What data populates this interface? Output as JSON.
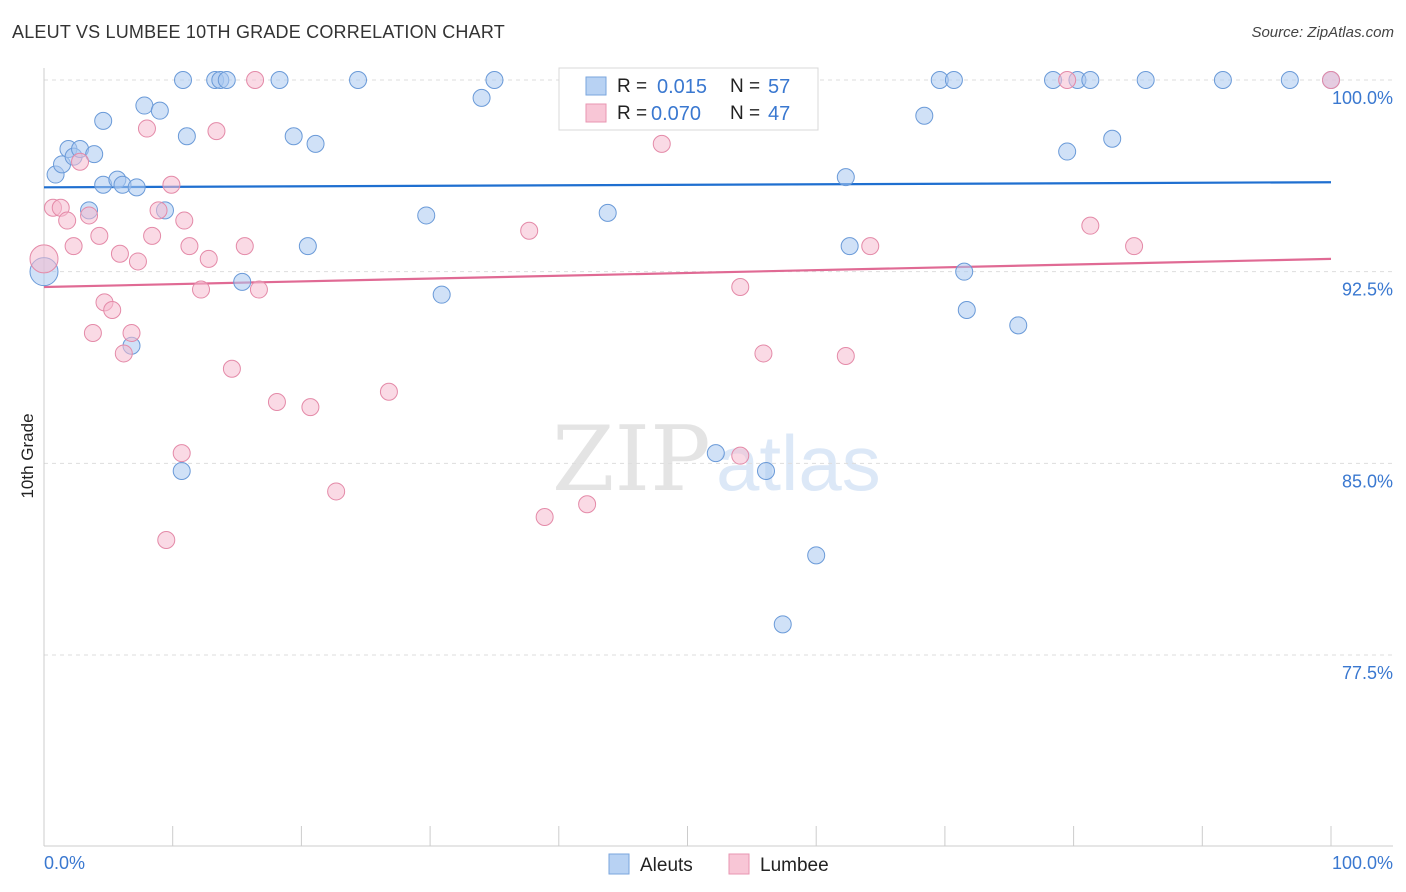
{
  "title": "ALEUT VS LUMBEE 10TH GRADE CORRELATION CHART",
  "source": "Source: ZipAtlas.com",
  "watermark": {
    "zip": "ZIP",
    "atlas": "atlas"
  },
  "legend": {
    "aleut": {
      "r_label": "R =",
      "r_value": "0.015",
      "n_label": "N =",
      "n_value": "57"
    },
    "lumbee": {
      "r_label": "R =",
      "r_value": "0.070",
      "n_label": "N =",
      "n_value": "47"
    }
  },
  "colors": {
    "aleut_fill": "#aac8f0",
    "aleut_stroke": "#6a9ad8",
    "aleut_line": "#1f6fd0",
    "lumbee_fill": "#f6bcd0",
    "lumbee_stroke": "#e48aa8",
    "lumbee_line": "#e06a94",
    "value_text": "#3a78d0",
    "grid": "#dddddd"
  },
  "chart_data": {
    "type": "scatter",
    "title": "ALEUT VS LUMBEE 10TH GRADE CORRELATION CHART",
    "xlabel": "",
    "ylabel": "10th Grade",
    "xlim": [
      0,
      100
    ],
    "ylim": [
      70.5,
      101.0
    ],
    "x_tick_labels": {
      "left": "0.0%",
      "right": "100.0%"
    },
    "y_ticks": [
      {
        "value": 100.0,
        "label": "100.0%"
      },
      {
        "value": 92.5,
        "label": "92.5%"
      },
      {
        "value": 85.0,
        "label": "85.0%"
      },
      {
        "value": 77.5,
        "label": "77.5%"
      }
    ],
    "series": [
      {
        "name": "Aleuts",
        "trend": {
          "x": [
            0,
            100
          ],
          "y": [
            95.8,
            96.0
          ]
        },
        "points": [
          {
            "x": 0.0,
            "y": 92.5
          },
          {
            "x": 0.9,
            "y": 96.3
          },
          {
            "x": 1.4,
            "y": 96.7
          },
          {
            "x": 1.9,
            "y": 97.3
          },
          {
            "x": 2.3,
            "y": 97.0
          },
          {
            "x": 2.8,
            "y": 97.3
          },
          {
            "x": 3.5,
            "y": 94.9
          },
          {
            "x": 3.9,
            "y": 97.1
          },
          {
            "x": 4.6,
            "y": 98.4
          },
          {
            "x": 4.6,
            "y": 95.9
          },
          {
            "x": 5.7,
            "y": 96.1
          },
          {
            "x": 6.1,
            "y": 95.9
          },
          {
            "x": 7.2,
            "y": 95.8
          },
          {
            "x": 6.8,
            "y": 89.6
          },
          {
            "x": 7.8,
            "y": 99.0
          },
          {
            "x": 9.0,
            "y": 98.8
          },
          {
            "x": 9.4,
            "y": 94.9
          },
          {
            "x": 10.7,
            "y": 84.7
          },
          {
            "x": 10.8,
            "y": 100.0
          },
          {
            "x": 11.1,
            "y": 97.8
          },
          {
            "x": 13.3,
            "y": 100.0
          },
          {
            "x": 13.7,
            "y": 100.0
          },
          {
            "x": 14.2,
            "y": 100.0
          },
          {
            "x": 15.4,
            "y": 92.1
          },
          {
            "x": 18.3,
            "y": 100.0
          },
          {
            "x": 19.4,
            "y": 97.8
          },
          {
            "x": 20.5,
            "y": 93.5
          },
          {
            "x": 21.1,
            "y": 97.5
          },
          {
            "x": 24.4,
            "y": 100.0
          },
          {
            "x": 29.7,
            "y": 94.7
          },
          {
            "x": 30.9,
            "y": 91.6
          },
          {
            "x": 34.0,
            "y": 99.3
          },
          {
            "x": 35.0,
            "y": 100.0
          },
          {
            "x": 43.8,
            "y": 94.8
          },
          {
            "x": 47.1,
            "y": 100.0
          },
          {
            "x": 52.2,
            "y": 85.4
          },
          {
            "x": 55.4,
            "y": 100.0
          },
          {
            "x": 56.1,
            "y": 84.7
          },
          {
            "x": 57.4,
            "y": 78.7
          },
          {
            "x": 60.0,
            "y": 81.4
          },
          {
            "x": 62.3,
            "y": 96.2
          },
          {
            "x": 62.6,
            "y": 93.5
          },
          {
            "x": 68.4,
            "y": 98.6
          },
          {
            "x": 69.6,
            "y": 100.0
          },
          {
            "x": 70.7,
            "y": 100.0
          },
          {
            "x": 71.5,
            "y": 92.5
          },
          {
            "x": 71.7,
            "y": 91.0
          },
          {
            "x": 75.7,
            "y": 90.4
          },
          {
            "x": 78.4,
            "y": 100.0
          },
          {
            "x": 79.5,
            "y": 97.2
          },
          {
            "x": 80.3,
            "y": 100.0
          },
          {
            "x": 81.3,
            "y": 100.0
          },
          {
            "x": 83.0,
            "y": 97.7
          },
          {
            "x": 85.6,
            "y": 100.0
          },
          {
            "x": 91.6,
            "y": 100.0
          },
          {
            "x": 96.8,
            "y": 100.0
          },
          {
            "x": 100.0,
            "y": 100.0
          }
        ]
      },
      {
        "name": "Lumbee",
        "trend": {
          "x": [
            0,
            100
          ],
          "y": [
            91.9,
            93.0
          ]
        },
        "points": [
          {
            "x": 0.0,
            "y": 93.0
          },
          {
            "x": 0.7,
            "y": 95.0
          },
          {
            "x": 1.3,
            "y": 95.0
          },
          {
            "x": 1.8,
            "y": 94.5
          },
          {
            "x": 2.3,
            "y": 93.5
          },
          {
            "x": 2.8,
            "y": 96.8
          },
          {
            "x": 3.5,
            "y": 94.7
          },
          {
            "x": 3.8,
            "y": 90.1
          },
          {
            "x": 4.3,
            "y": 93.9
          },
          {
            "x": 4.7,
            "y": 91.3
          },
          {
            "x": 5.3,
            "y": 91.0
          },
          {
            "x": 5.9,
            "y": 93.2
          },
          {
            "x": 6.2,
            "y": 89.3
          },
          {
            "x": 6.8,
            "y": 90.1
          },
          {
            "x": 7.3,
            "y": 92.9
          },
          {
            "x": 8.0,
            "y": 98.1
          },
          {
            "x": 8.4,
            "y": 93.9
          },
          {
            "x": 8.9,
            "y": 94.9
          },
          {
            "x": 9.5,
            "y": 82.0
          },
          {
            "x": 9.9,
            "y": 95.9
          },
          {
            "x": 10.7,
            "y": 85.4
          },
          {
            "x": 10.9,
            "y": 94.5
          },
          {
            "x": 11.3,
            "y": 93.5
          },
          {
            "x": 12.2,
            "y": 91.8
          },
          {
            "x": 12.8,
            "y": 93.0
          },
          {
            "x": 13.4,
            "y": 98.0
          },
          {
            "x": 14.6,
            "y": 88.7
          },
          {
            "x": 15.6,
            "y": 93.5
          },
          {
            "x": 16.4,
            "y": 100.0
          },
          {
            "x": 16.7,
            "y": 91.8
          },
          {
            "x": 18.1,
            "y": 87.4
          },
          {
            "x": 20.7,
            "y": 87.2
          },
          {
            "x": 22.7,
            "y": 83.9
          },
          {
            "x": 26.8,
            "y": 87.8
          },
          {
            "x": 37.7,
            "y": 94.1
          },
          {
            "x": 38.9,
            "y": 82.9
          },
          {
            "x": 42.2,
            "y": 83.4
          },
          {
            "x": 48.0,
            "y": 97.5
          },
          {
            "x": 54.1,
            "y": 91.9
          },
          {
            "x": 54.1,
            "y": 85.3
          },
          {
            "x": 55.9,
            "y": 89.3
          },
          {
            "x": 62.3,
            "y": 89.2
          },
          {
            "x": 64.2,
            "y": 93.5
          },
          {
            "x": 79.5,
            "y": 100.0
          },
          {
            "x": 81.3,
            "y": 94.3
          },
          {
            "x": 84.7,
            "y": 93.5
          },
          {
            "x": 100.0,
            "y": 100.0
          }
        ]
      }
    ]
  },
  "bottom_legend": {
    "aleuts": "Aleuts",
    "lumbee": "Lumbee"
  }
}
